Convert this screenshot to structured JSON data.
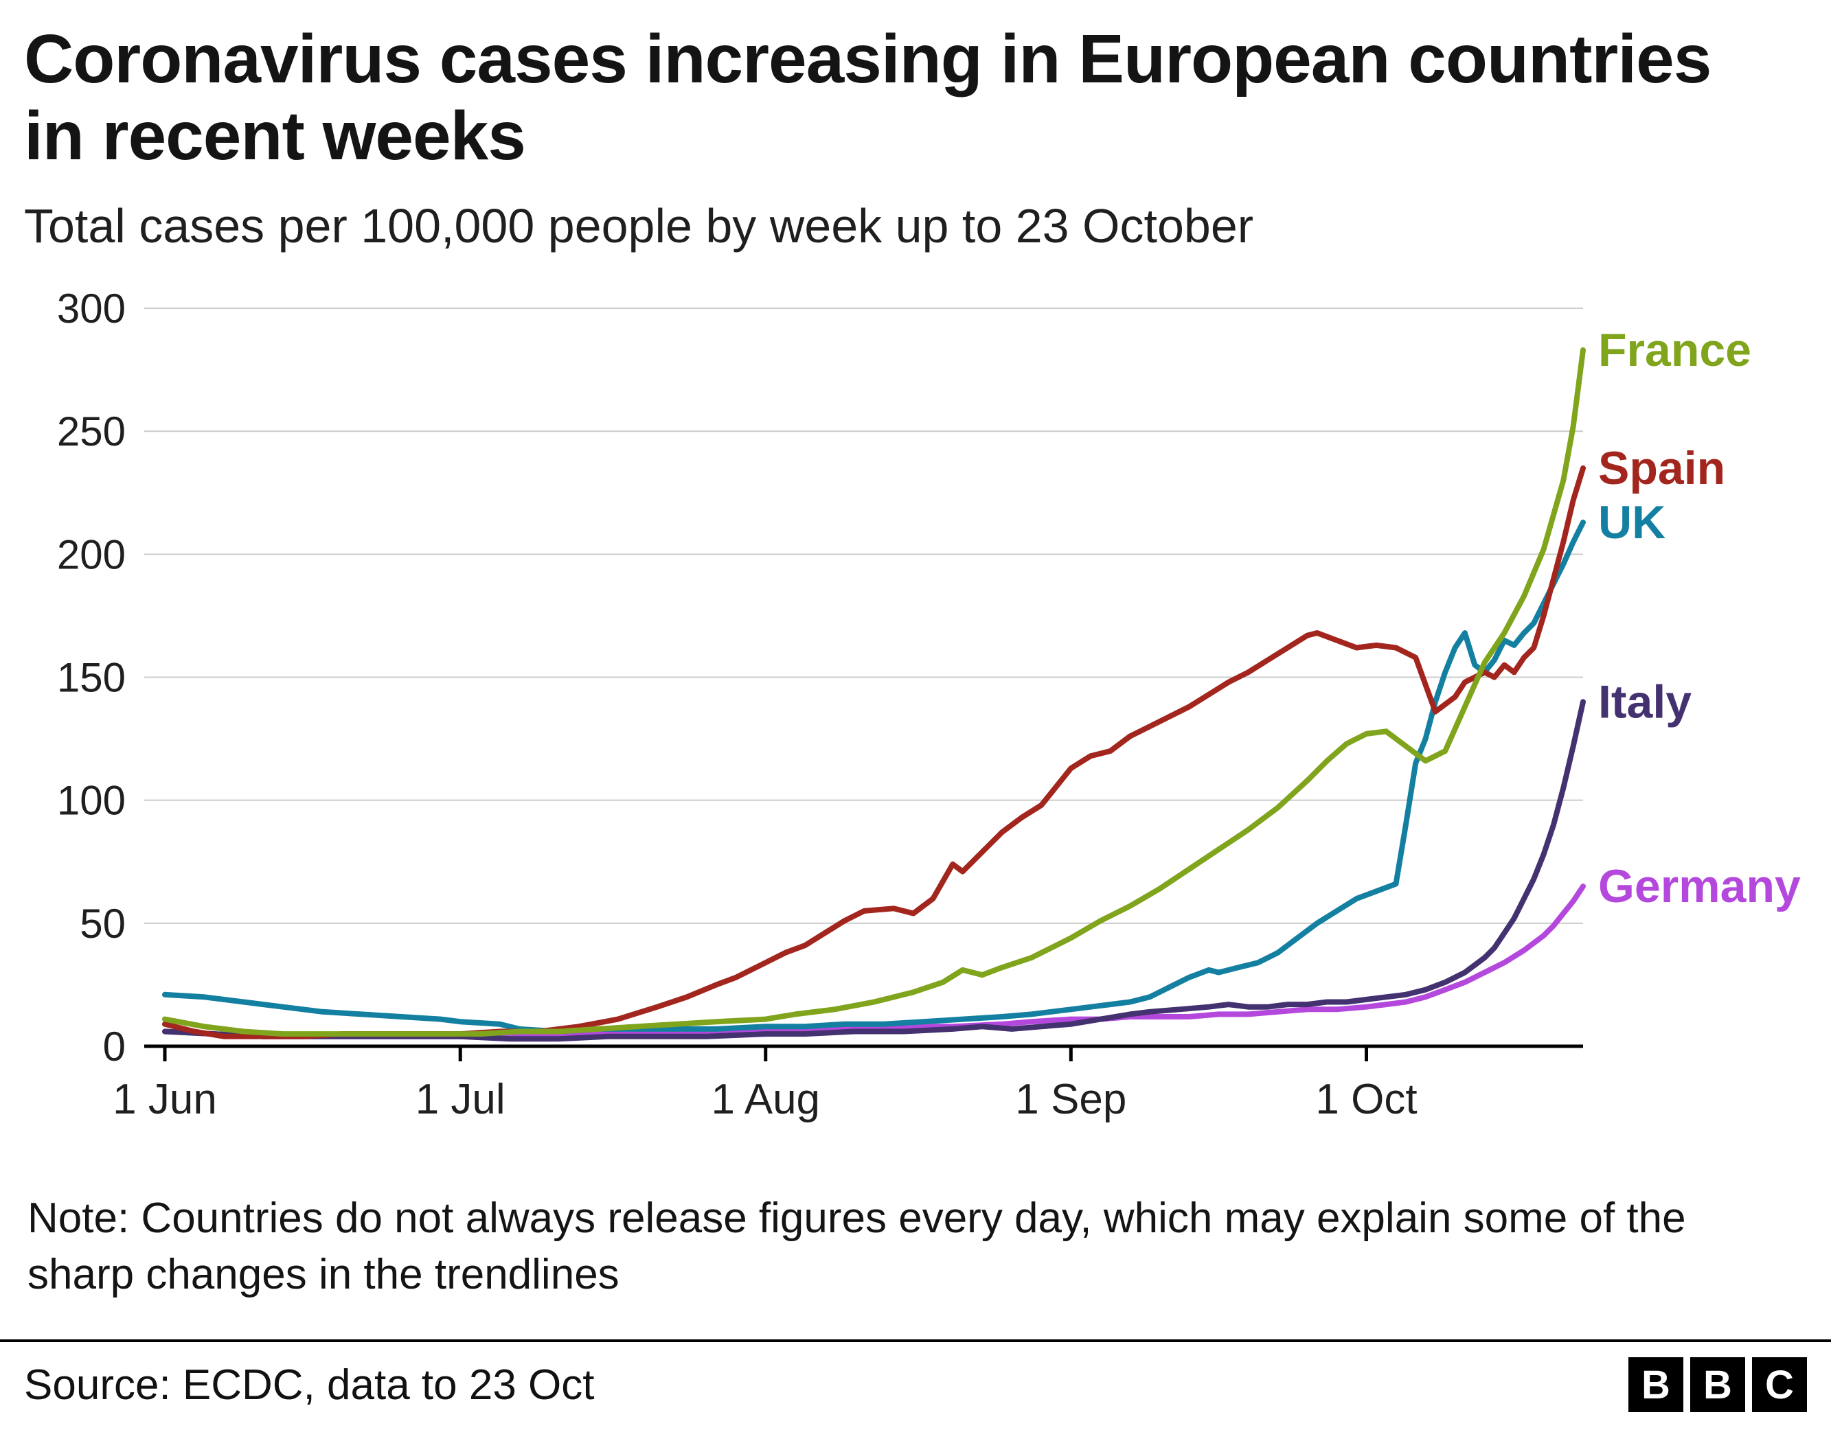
{
  "note": "Note: Countries do not always release figures every day, which may explain some of the sharp changes in the trendlines",
  "footer": {
    "source": "Source: ECDC, data to 23 Oct",
    "logo_letters": [
      "B",
      "B",
      "C"
    ]
  },
  "chart_data": {
    "type": "line",
    "title": "Coronavirus cases increasing in European countries in recent weeks",
    "subtitle": "Total cases per 100,000 people by week up to 23 October",
    "xlabel": "",
    "ylabel": "Total cases per 100,000 people",
    "x_unit": "days since 1 Jun",
    "xlim": [
      0,
      144
    ],
    "ylim": [
      0,
      300
    ],
    "grid": "horizontal",
    "legend_position": "right-of-line-ends",
    "x_ticks": [
      {
        "day": 0,
        "label": "1 Jun"
      },
      {
        "day": 30,
        "label": "1 Jul"
      },
      {
        "day": 61,
        "label": "1 Aug"
      },
      {
        "day": 92,
        "label": "1 Sep"
      },
      {
        "day": 122,
        "label": "1 Oct"
      }
    ],
    "y_ticks": [
      0,
      50,
      100,
      150,
      200,
      250,
      300
    ],
    "series": [
      {
        "name": "Germany",
        "color": "#b448dd",
        "points": [
          [
            0,
            6
          ],
          [
            5,
            5
          ],
          [
            10,
            4
          ],
          [
            15,
            4
          ],
          [
            20,
            4
          ],
          [
            25,
            4
          ],
          [
            30,
            4
          ],
          [
            35,
            4
          ],
          [
            40,
            4
          ],
          [
            45,
            5
          ],
          [
            50,
            5
          ],
          [
            55,
            6
          ],
          [
            61,
            6
          ],
          [
            65,
            7
          ],
          [
            70,
            7
          ],
          [
            75,
            8
          ],
          [
            80,
            8
          ],
          [
            85,
            9
          ],
          [
            88,
            10
          ],
          [
            92,
            11
          ],
          [
            95,
            11
          ],
          [
            98,
            12
          ],
          [
            101,
            12
          ],
          [
            104,
            12
          ],
          [
            107,
            13
          ],
          [
            110,
            13
          ],
          [
            113,
            14
          ],
          [
            116,
            15
          ],
          [
            119,
            15
          ],
          [
            122,
            16
          ],
          [
            124,
            17
          ],
          [
            126,
            18
          ],
          [
            128,
            20
          ],
          [
            130,
            23
          ],
          [
            132,
            26
          ],
          [
            134,
            30
          ],
          [
            136,
            34
          ],
          [
            138,
            39
          ],
          [
            140,
            45
          ],
          [
            141,
            49
          ],
          [
            142,
            54
          ],
          [
            143,
            59
          ],
          [
            144,
            65
          ]
        ]
      },
      {
        "name": "Italy",
        "color": "#44316f",
        "points": [
          [
            0,
            6
          ],
          [
            5,
            5
          ],
          [
            10,
            4
          ],
          [
            15,
            4
          ],
          [
            20,
            4
          ],
          [
            25,
            4
          ],
          [
            30,
            4
          ],
          [
            35,
            3
          ],
          [
            40,
            3
          ],
          [
            45,
            4
          ],
          [
            50,
            4
          ],
          [
            55,
            4
          ],
          [
            61,
            5
          ],
          [
            65,
            5
          ],
          [
            70,
            6
          ],
          [
            75,
            6
          ],
          [
            80,
            7
          ],
          [
            83,
            8
          ],
          [
            86,
            7
          ],
          [
            89,
            8
          ],
          [
            92,
            9
          ],
          [
            95,
            11
          ],
          [
            98,
            13
          ],
          [
            100,
            14
          ],
          [
            103,
            15
          ],
          [
            106,
            16
          ],
          [
            108,
            17
          ],
          [
            110,
            16
          ],
          [
            112,
            16
          ],
          [
            114,
            17
          ],
          [
            116,
            17
          ],
          [
            118,
            18
          ],
          [
            120,
            18
          ],
          [
            122,
            19
          ],
          [
            124,
            20
          ],
          [
            126,
            21
          ],
          [
            128,
            23
          ],
          [
            130,
            26
          ],
          [
            132,
            30
          ],
          [
            134,
            36
          ],
          [
            135,
            40
          ],
          [
            136,
            46
          ],
          [
            137,
            52
          ],
          [
            138,
            60
          ],
          [
            139,
            68
          ],
          [
            140,
            78
          ],
          [
            141,
            90
          ],
          [
            142,
            105
          ],
          [
            143,
            122
          ],
          [
            144,
            140
          ]
        ]
      },
      {
        "name": "UK",
        "color": "#1380a1",
        "points": [
          [
            0,
            21
          ],
          [
            4,
            20
          ],
          [
            8,
            18
          ],
          [
            12,
            16
          ],
          [
            16,
            14
          ],
          [
            20,
            13
          ],
          [
            24,
            12
          ],
          [
            28,
            11
          ],
          [
            30,
            10
          ],
          [
            34,
            9
          ],
          [
            36,
            7
          ],
          [
            40,
            6
          ],
          [
            44,
            7
          ],
          [
            48,
            7
          ],
          [
            52,
            7
          ],
          [
            56,
            7
          ],
          [
            61,
            8
          ],
          [
            65,
            8
          ],
          [
            69,
            9
          ],
          [
            73,
            9
          ],
          [
            77,
            10
          ],
          [
            81,
            11
          ],
          [
            85,
            12
          ],
          [
            88,
            13
          ],
          [
            90,
            14
          ],
          [
            92,
            15
          ],
          [
            94,
            16
          ],
          [
            96,
            17
          ],
          [
            98,
            18
          ],
          [
            100,
            20
          ],
          [
            102,
            24
          ],
          [
            104,
            28
          ],
          [
            106,
            31
          ],
          [
            107,
            30
          ],
          [
            109,
            32
          ],
          [
            111,
            34
          ],
          [
            113,
            38
          ],
          [
            115,
            44
          ],
          [
            117,
            50
          ],
          [
            119,
            55
          ],
          [
            121,
            60
          ],
          [
            123,
            63
          ],
          [
            125,
            66
          ],
          [
            126,
            90
          ],
          [
            127,
            115
          ],
          [
            128,
            125
          ],
          [
            129,
            140
          ],
          [
            130,
            152
          ],
          [
            131,
            162
          ],
          [
            132,
            168
          ],
          [
            133,
            155
          ],
          [
            134,
            152
          ],
          [
            135,
            157
          ],
          [
            136,
            165
          ],
          [
            137,
            163
          ],
          [
            138,
            168
          ],
          [
            139,
            172
          ],
          [
            140,
            180
          ],
          [
            141,
            188
          ],
          [
            142,
            196
          ],
          [
            143,
            205
          ],
          [
            144,
            213
          ]
        ]
      },
      {
        "name": "Spain",
        "color": "#a3261e",
        "points": [
          [
            0,
            9
          ],
          [
            3,
            6
          ],
          [
            6,
            4
          ],
          [
            10,
            4
          ],
          [
            14,
            4
          ],
          [
            18,
            5
          ],
          [
            22,
            5
          ],
          [
            26,
            5
          ],
          [
            30,
            5
          ],
          [
            34,
            6
          ],
          [
            38,
            6
          ],
          [
            42,
            8
          ],
          [
            46,
            11
          ],
          [
            50,
            16
          ],
          [
            53,
            20
          ],
          [
            56,
            25
          ],
          [
            58,
            28
          ],
          [
            61,
            34
          ],
          [
            63,
            38
          ],
          [
            65,
            41
          ],
          [
            67,
            46
          ],
          [
            69,
            51
          ],
          [
            71,
            55
          ],
          [
            74,
            56
          ],
          [
            76,
            54
          ],
          [
            78,
            60
          ],
          [
            80,
            74
          ],
          [
            81,
            71
          ],
          [
            83,
            79
          ],
          [
            85,
            87
          ],
          [
            87,
            93
          ],
          [
            89,
            98
          ],
          [
            91,
            108
          ],
          [
            92,
            113
          ],
          [
            94,
            118
          ],
          [
            96,
            120
          ],
          [
            98,
            126
          ],
          [
            100,
            130
          ],
          [
            102,
            134
          ],
          [
            104,
            138
          ],
          [
            106,
            143
          ],
          [
            108,
            148
          ],
          [
            110,
            152
          ],
          [
            112,
            157
          ],
          [
            114,
            162
          ],
          [
            116,
            167
          ],
          [
            117,
            168
          ],
          [
            119,
            165
          ],
          [
            121,
            162
          ],
          [
            123,
            163
          ],
          [
            125,
            162
          ],
          [
            127,
            158
          ],
          [
            129,
            136
          ],
          [
            131,
            142
          ],
          [
            132,
            148
          ],
          [
            134,
            152
          ],
          [
            135,
            150
          ],
          [
            136,
            155
          ],
          [
            137,
            152
          ],
          [
            138,
            158
          ],
          [
            139,
            162
          ],
          [
            140,
            175
          ],
          [
            141,
            190
          ],
          [
            142,
            205
          ],
          [
            143,
            222
          ],
          [
            144,
            235
          ]
        ]
      },
      {
        "name": "France",
        "color": "#80a41c",
        "points": [
          [
            0,
            11
          ],
          [
            4,
            8
          ],
          [
            8,
            6
          ],
          [
            12,
            5
          ],
          [
            16,
            5
          ],
          [
            20,
            5
          ],
          [
            24,
            5
          ],
          [
            28,
            5
          ],
          [
            32,
            5
          ],
          [
            36,
            6
          ],
          [
            40,
            6
          ],
          [
            44,
            7
          ],
          [
            48,
            8
          ],
          [
            52,
            9
          ],
          [
            56,
            10
          ],
          [
            61,
            11
          ],
          [
            64,
            13
          ],
          [
            68,
            15
          ],
          [
            72,
            18
          ],
          [
            76,
            22
          ],
          [
            79,
            26
          ],
          [
            81,
            31
          ],
          [
            83,
            29
          ],
          [
            85,
            32
          ],
          [
            88,
            36
          ],
          [
            90,
            40
          ],
          [
            92,
            44
          ],
          [
            95,
            51
          ],
          [
            98,
            57
          ],
          [
            101,
            64
          ],
          [
            104,
            72
          ],
          [
            107,
            80
          ],
          [
            110,
            88
          ],
          [
            113,
            97
          ],
          [
            116,
            108
          ],
          [
            118,
            116
          ],
          [
            120,
            123
          ],
          [
            122,
            127
          ],
          [
            124,
            128
          ],
          [
            126,
            122
          ],
          [
            128,
            116
          ],
          [
            130,
            120
          ],
          [
            132,
            138
          ],
          [
            134,
            156
          ],
          [
            136,
            168
          ],
          [
            138,
            183
          ],
          [
            140,
            202
          ],
          [
            142,
            230
          ],
          [
            143,
            252
          ],
          [
            144,
            283
          ]
        ]
      }
    ]
  }
}
